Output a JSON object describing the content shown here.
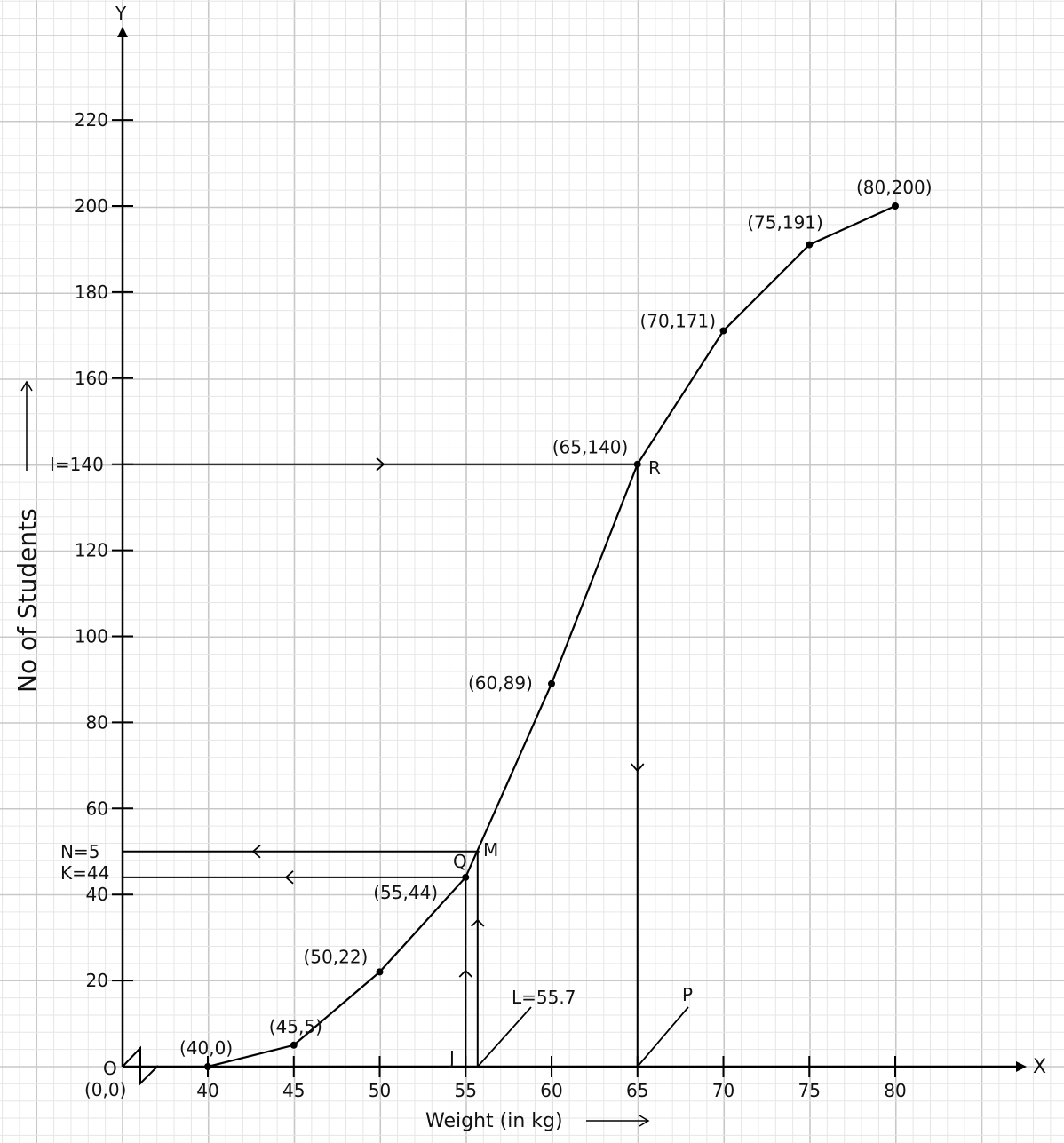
{
  "chart_data": {
    "type": "line",
    "xlabel": "Weight (in kg)",
    "ylabel": "No of Students",
    "x_axis_letter": "X",
    "y_axis_letter": "Y",
    "origin_label": "O",
    "origin_coord": "(0,0)",
    "xlim": [
      35,
      87
    ],
    "ylim": [
      0,
      230
    ],
    "x_ticks": [
      40,
      45,
      50,
      55,
      60,
      65,
      70,
      75,
      80
    ],
    "y_ticks": [
      20,
      40,
      60,
      80,
      100,
      120,
      140,
      160,
      180,
      200,
      220
    ],
    "grid": true,
    "series": [
      {
        "x": [
          40,
          45,
          50,
          55,
          60,
          65,
          70,
          75,
          80
        ],
        "y": [
          0,
          5,
          22,
          44,
          89,
          140,
          171,
          191,
          200
        ],
        "labels": [
          "(40,0)",
          "(45,5)",
          "(50,22)",
          "(55,44)",
          "(60,89)",
          "(65,140)",
          "(70,171)",
          "(75,191)",
          "(80,200)"
        ]
      }
    ],
    "annotations": {
      "I_label": "I=140",
      "I_y": 140,
      "N_label": "N=5",
      "N_y": 50,
      "K_label": "K=44",
      "K_y": 44,
      "R_label": "R",
      "R_x": 65,
      "M_label": "M",
      "M_x": 55.8,
      "Q_label": "Q",
      "Q_x": 55,
      "J_label": "J",
      "L_label": "L=55.7",
      "L_x": 55.7,
      "P_label": "P"
    },
    "colors": {
      "line": "#000000",
      "grid_major": "#c8c8c8",
      "grid_minor": "#e6e6e6"
    }
  }
}
